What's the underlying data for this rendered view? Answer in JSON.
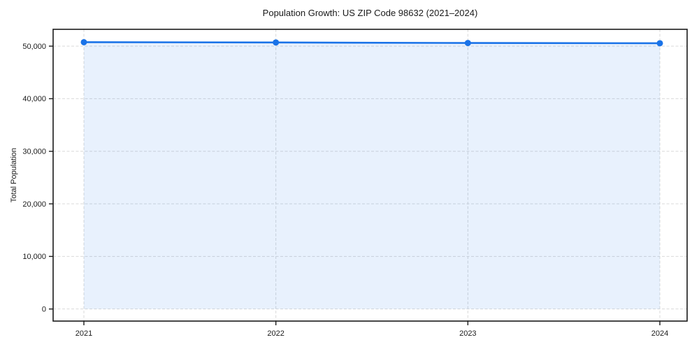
{
  "chart_data": {
    "type": "line",
    "title": "Population Growth: US ZIP Code 98632 (2021–2024)",
    "xlabel": "",
    "ylabel": "Total Population",
    "x": [
      2021,
      2022,
      2023,
      2024
    ],
    "xtick_labels": [
      "2021",
      "2022",
      "2023",
      "2024"
    ],
    "series": [
      {
        "name": "Total Population",
        "values": [
          50750,
          50700,
          50600,
          50550
        ]
      }
    ],
    "yticks": [
      0,
      10000,
      20000,
      30000,
      40000,
      50000
    ],
    "ytick_labels": [
      "0",
      "10,000",
      "20,000",
      "30,000",
      "40,000",
      "50,000"
    ],
    "ylim": [
      -2300,
      53200
    ],
    "grid": true,
    "grid_style": "dashed",
    "legend": false,
    "style": {
      "line_color": "#1a73e8",
      "marker": "circle",
      "marker_color": "#1a73e8",
      "fill_below": true,
      "fill_color": "#1a73e8",
      "fill_opacity": 0.1,
      "grid_color": "#d9d9d9",
      "axis_color": "#1a1a1a",
      "text_color": "#1a1a1a",
      "background": "#ffffff"
    }
  }
}
